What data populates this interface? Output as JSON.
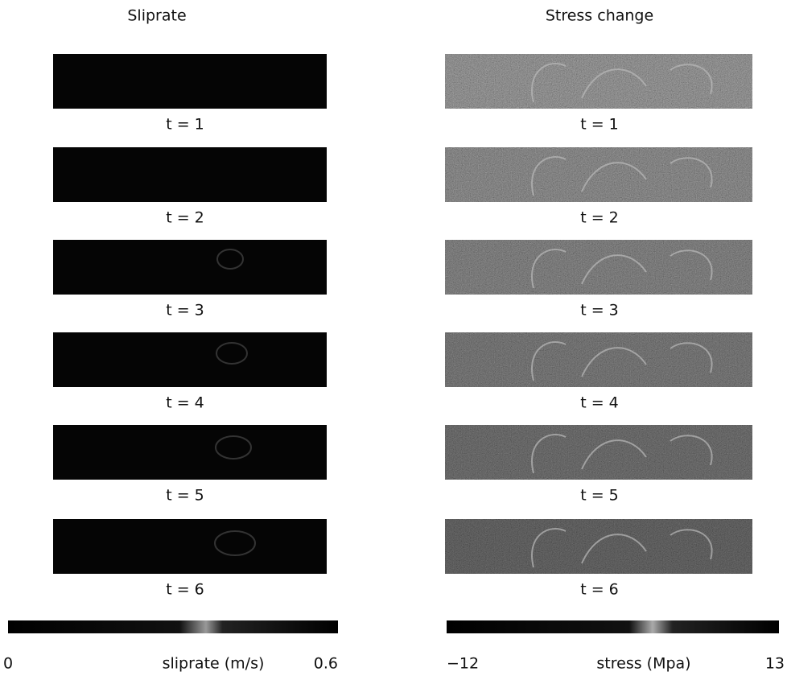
{
  "panels": [
    {
      "title": "Sliprate",
      "frames": [
        "t = 1",
        "t = 2",
        "t = 3",
        "t = 4",
        "t = 5",
        "t = 6"
      ],
      "colorbar": {
        "min": "0",
        "label": "sliprate (m/s)",
        "max": "0.6"
      }
    },
    {
      "title": "Stress change",
      "frames": [
        "t = 1",
        "t = 2",
        "t = 3",
        "t = 4",
        "t = 5",
        "t = 6"
      ],
      "colorbar": {
        "min": "−12",
        "label": "stress (Mpa)",
        "max": "13"
      }
    }
  ]
}
